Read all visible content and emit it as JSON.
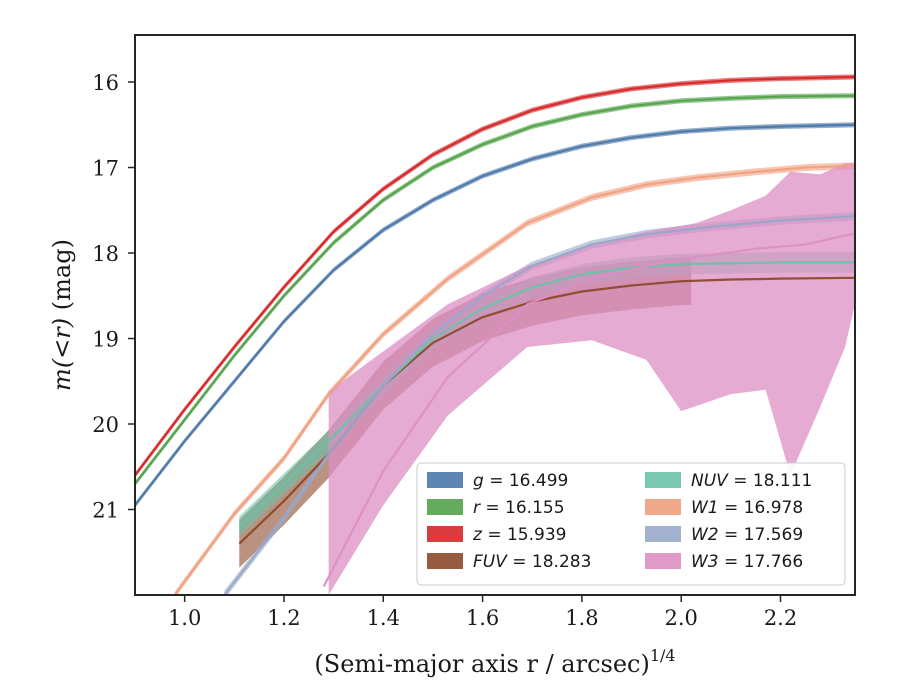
{
  "chart_data": {
    "type": "line",
    "xlabel": "(Semi-major axis r / arcsec)",
    "xlabel_exponent": "1/4",
    "ylabel_prefix": "m(<r)",
    "ylabel_suffix": "(mag)",
    "xlim": [
      0.9,
      2.35
    ],
    "ylim": [
      22.0,
      15.45
    ],
    "x_ticks": [
      1.0,
      1.2,
      1.4,
      1.6,
      1.8,
      2.0,
      2.2
    ],
    "x_tick_labels": [
      "1.0",
      "1.2",
      "1.4",
      "1.6",
      "1.8",
      "2.0",
      "2.2"
    ],
    "y_ticks": [
      16,
      17,
      18,
      19,
      20,
      21
    ],
    "y_tick_labels": [
      "16",
      "17",
      "18",
      "19",
      "20",
      "21"
    ],
    "grid": false,
    "legend_placement": "lower-right",
    "series": [
      {
        "name": "g",
        "legend": "g = 16.499",
        "italic_label": "g",
        "label_value": "= 16.499",
        "color": "#4c78a8",
        "points": [
          [
            0.9,
            20.95
          ],
          [
            1.0,
            20.2
          ],
          [
            1.1,
            19.5
          ],
          [
            1.2,
            18.8
          ],
          [
            1.3,
            18.2
          ],
          [
            1.4,
            17.73
          ],
          [
            1.5,
            17.38
          ],
          [
            1.6,
            17.1
          ],
          [
            1.7,
            16.9
          ],
          [
            1.8,
            16.75
          ],
          [
            1.9,
            16.65
          ],
          [
            2.0,
            16.58
          ],
          [
            2.1,
            16.54
          ],
          [
            2.2,
            16.52
          ],
          [
            2.35,
            16.5
          ]
        ],
        "band": 0.03
      },
      {
        "name": "r",
        "legend": "r = 16.155",
        "italic_label": "r",
        "label_value": "= 16.155",
        "color": "#54a24b",
        "points": [
          [
            0.9,
            20.7
          ],
          [
            1.0,
            19.95
          ],
          [
            1.1,
            19.2
          ],
          [
            1.2,
            18.5
          ],
          [
            1.3,
            17.88
          ],
          [
            1.4,
            17.38
          ],
          [
            1.5,
            17.0
          ],
          [
            1.6,
            16.73
          ],
          [
            1.7,
            16.52
          ],
          [
            1.8,
            16.38
          ],
          [
            1.9,
            16.28
          ],
          [
            2.0,
            16.22
          ],
          [
            2.1,
            16.19
          ],
          [
            2.2,
            16.17
          ],
          [
            2.35,
            16.16
          ]
        ],
        "band": 0.03
      },
      {
        "name": "z",
        "legend": "z = 15.939",
        "italic_label": "z",
        "label_value": "= 15.939",
        "color": "#d62728",
        "points": [
          [
            0.9,
            20.6
          ],
          [
            1.0,
            19.83
          ],
          [
            1.1,
            19.1
          ],
          [
            1.2,
            18.4
          ],
          [
            1.3,
            17.75
          ],
          [
            1.4,
            17.25
          ],
          [
            1.5,
            16.85
          ],
          [
            1.6,
            16.55
          ],
          [
            1.7,
            16.33
          ],
          [
            1.8,
            16.18
          ],
          [
            1.9,
            16.08
          ],
          [
            2.0,
            16.02
          ],
          [
            2.1,
            15.98
          ],
          [
            2.2,
            15.96
          ],
          [
            2.35,
            15.94
          ]
        ],
        "band": 0.03
      },
      {
        "name": "FUV",
        "legend": "FUV = 18.283",
        "italic_label": "FUV",
        "label_value": "= 18.283",
        "color": "#8c4a2a",
        "points": [
          [
            1.11,
            21.4
          ],
          [
            1.2,
            20.9
          ],
          [
            1.29,
            20.35
          ],
          [
            1.4,
            19.55
          ],
          [
            1.5,
            19.05
          ],
          [
            1.6,
            18.75
          ],
          [
            1.7,
            18.57
          ],
          [
            1.8,
            18.45
          ],
          [
            1.9,
            18.38
          ],
          [
            2.0,
            18.33
          ],
          [
            2.1,
            18.31
          ],
          [
            2.2,
            18.3
          ],
          [
            2.35,
            18.29
          ]
        ],
        "band": 0.28,
        "band_until": 2.02
      },
      {
        "name": "NUV",
        "legend": "NUV = 18.111",
        "italic_label": "NUV",
        "label_value": "= 18.111",
        "color": "#6cc2a8",
        "points": [
          [
            1.11,
            21.2
          ],
          [
            1.2,
            20.7
          ],
          [
            1.29,
            20.2
          ],
          [
            1.4,
            19.55
          ],
          [
            1.5,
            19.0
          ],
          [
            1.6,
            18.65
          ],
          [
            1.7,
            18.4
          ],
          [
            1.8,
            18.25
          ],
          [
            1.9,
            18.17
          ],
          [
            2.0,
            18.13
          ],
          [
            2.1,
            18.12
          ],
          [
            2.2,
            18.11
          ],
          [
            2.35,
            18.11
          ]
        ],
        "band": 0.12
      },
      {
        "name": "W1",
        "legend": "W1 = 16.978",
        "italic_label": "W1",
        "label_value": "= 16.978",
        "color": "#f0a080",
        "points": [
          [
            0.98,
            22.0
          ],
          [
            1.1,
            21.05
          ],
          [
            1.2,
            20.4
          ],
          [
            1.29,
            19.65
          ],
          [
            1.4,
            18.95
          ],
          [
            1.53,
            18.3
          ],
          [
            1.69,
            17.65
          ],
          [
            1.82,
            17.35
          ],
          [
            1.93,
            17.2
          ],
          [
            2.03,
            17.12
          ],
          [
            2.15,
            17.05
          ],
          [
            2.25,
            17.0
          ],
          [
            2.35,
            16.98
          ]
        ],
        "band": 0.04
      },
      {
        "name": "W2",
        "legend": "W2 = 17.569",
        "italic_label": "W2",
        "label_value": "= 17.569",
        "color": "#98a8c8",
        "points": [
          [
            1.08,
            22.0
          ],
          [
            1.2,
            21.1
          ],
          [
            1.29,
            20.35
          ],
          [
            1.4,
            19.55
          ],
          [
            1.5,
            18.95
          ],
          [
            1.6,
            18.5
          ],
          [
            1.7,
            18.15
          ],
          [
            1.82,
            17.9
          ],
          [
            1.93,
            17.78
          ],
          [
            2.05,
            17.7
          ],
          [
            2.2,
            17.62
          ],
          [
            2.35,
            17.57
          ]
        ],
        "band": 0.05
      },
      {
        "name": "W3",
        "legend": "W3 = 17.766",
        "italic_label": "W3",
        "label_value": "= 17.766",
        "color": "#dc8fc4",
        "points": [
          [
            1.28,
            21.9
          ],
          [
            1.4,
            20.55
          ],
          [
            1.53,
            19.45
          ],
          [
            1.69,
            18.6
          ],
          [
            1.82,
            18.3
          ],
          [
            1.93,
            18.15
          ],
          [
            2.03,
            18.05
          ],
          [
            2.15,
            17.95
          ],
          [
            2.25,
            17.9
          ],
          [
            2.35,
            17.77
          ]
        ],
        "band_upper": [
          [
            1.29,
            19.62
          ],
          [
            1.4,
            19.15
          ],
          [
            1.53,
            18.6
          ],
          [
            1.69,
            18.15
          ],
          [
            1.82,
            17.9
          ],
          [
            1.93,
            17.75
          ],
          [
            2.03,
            17.65
          ],
          [
            2.1,
            17.5
          ],
          [
            2.17,
            17.33
          ],
          [
            2.22,
            17.05
          ],
          [
            2.28,
            17.08
          ],
          [
            2.33,
            16.95
          ],
          [
            2.35,
            16.95
          ]
        ],
        "band_lower": [
          [
            1.29,
            22.0
          ],
          [
            1.4,
            20.95
          ],
          [
            1.53,
            19.9
          ],
          [
            1.69,
            19.1
          ],
          [
            1.82,
            19.02
          ],
          [
            1.93,
            19.25
          ],
          [
            2.0,
            19.85
          ],
          [
            2.1,
            19.65
          ],
          [
            2.17,
            19.6
          ],
          [
            2.22,
            20.6
          ],
          [
            2.28,
            19.8
          ],
          [
            2.33,
            19.1
          ],
          [
            2.35,
            18.6
          ]
        ]
      }
    ]
  }
}
